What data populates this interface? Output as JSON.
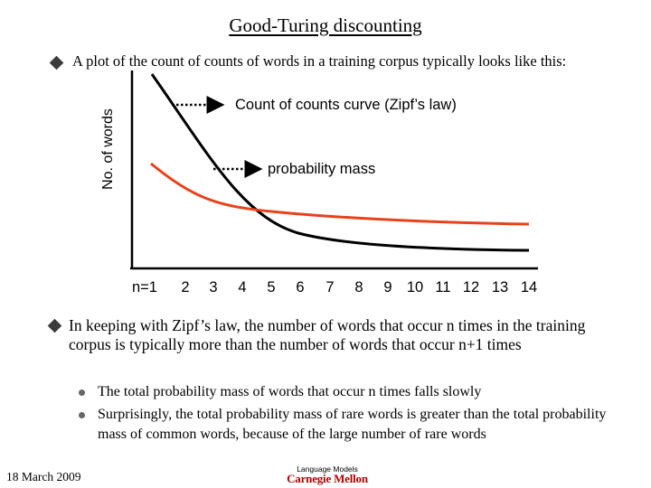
{
  "slide": {
    "title": "Good-Turing discounting",
    "intro_bullet": "A plot of the count of counts of words in a training corpus typically looks like this:",
    "main_bullet": "In keeping with Zipf’s law, the number of words that occur n times in the training corpus is typically more than the number of words that occur n+1 times",
    "sub_bullets": [
      "The total probability mass of words that occur n times falls slowly",
      "Surprisingly, the total probability mass of rare words is greater than the total probability mass of common words, because of the large number of rare words"
    ],
    "footer": {
      "date": "18 March 2009",
      "label": "Language Models",
      "logo": "Carnegie Mellon"
    }
  },
  "chart_data": {
    "type": "line",
    "ylabel": "No. of words",
    "x_ticks": [
      "n=1",
      "2",
      "3",
      "4",
      "5",
      "6",
      "7",
      "8",
      "9",
      "10",
      "11",
      "12",
      "13",
      "14"
    ],
    "annotations": [
      "Count of counts curve (Zipf’s law)",
      "probability mass"
    ],
    "series": [
      {
        "values": [],
        "color": "#000000"
      },
      {
        "values": [],
        "color": "#e8421a"
      }
    ],
    "colors": {
      "zipf": "#000000",
      "mass": "#e8421a"
    }
  }
}
